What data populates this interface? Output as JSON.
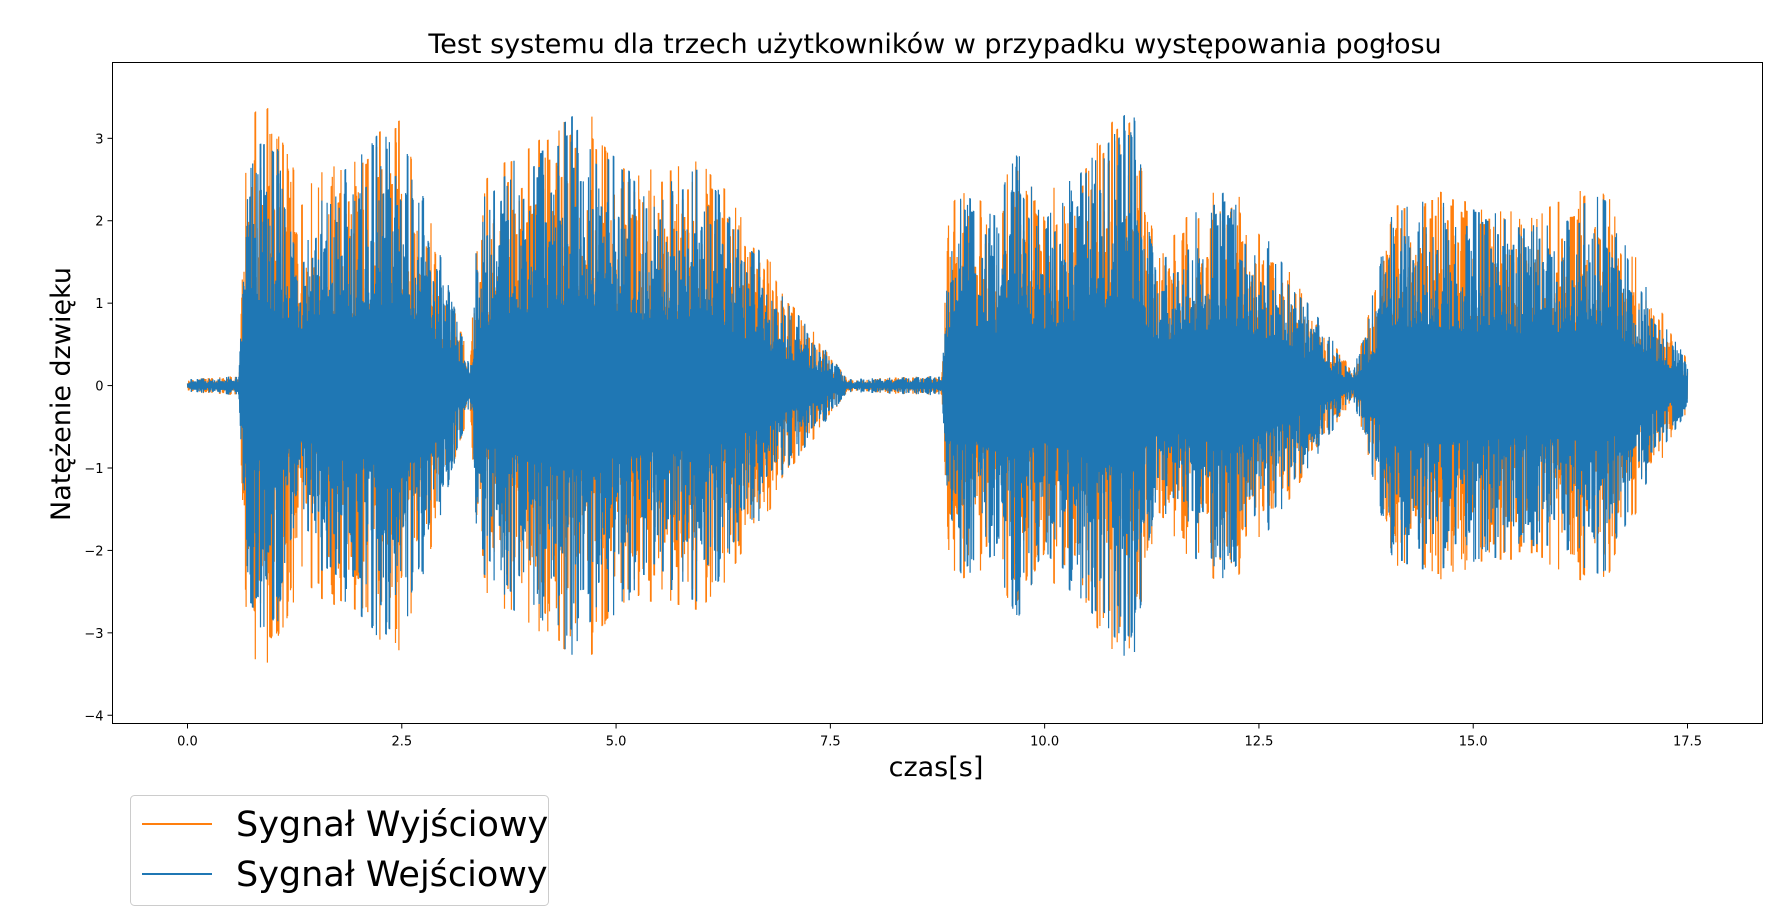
{
  "chart_data": {
    "type": "line",
    "title": "Test systemu dla trzech użytkowników w przypadku występowania pogłosu",
    "xlabel": "czas[s]",
    "ylabel": "Natężenie dzwięku",
    "xlim": [
      -0.875,
      18.375
    ],
    "ylim": [
      -4.1,
      3.92
    ],
    "x_ticks": [
      0.0,
      2.5,
      5.0,
      7.5,
      10.0,
      12.5,
      15.0,
      17.5
    ],
    "x_tick_labels": [
      "0.0",
      "2.5",
      "5.0",
      "7.5",
      "10.0",
      "12.5",
      "15.0",
      "17.5"
    ],
    "y_ticks": [
      3,
      2,
      1,
      0,
      -1,
      -2,
      -3,
      -4
    ],
    "y_tick_labels": [
      "3",
      "2",
      "1",
      "0",
      "−1",
      "−2",
      "−3",
      "−4"
    ],
    "grid": false,
    "legend_position": "bottom-left (below plot)",
    "series": [
      {
        "name": "Sygnał Wyjściowy",
        "color": "#ff7f0e",
        "x": [
          0.0,
          0.6,
          0.7,
          0.98,
          1.28,
          2.48,
          3.3,
          3.4,
          4.0,
          4.6,
          5.3,
          6.0,
          6.7,
          7.0,
          7.7,
          8.8,
          8.88,
          9.05,
          9.15,
          9.45,
          9.65,
          10.0,
          11.0,
          11.3,
          12.2,
          12.3,
          13.6,
          14.1,
          14.6,
          15.0,
          15.7,
          16.4,
          16.45,
          17.0,
          17.5
        ],
        "y": [
          0.08,
          0.12,
          3.25,
          -3.7,
          2.45,
          3.3,
          0.3,
          2.5,
          3.0,
          -3.4,
          2.6,
          -2.75,
          1.8,
          -1.1,
          0.08,
          0.12,
          2.2,
          -2.55,
          2.5,
          -2.2,
          3.0,
          2.3,
          3.55,
          -1.8,
          2.55,
          -2.35,
          0.15,
          2.35,
          2.4,
          -2.2,
          2.1,
          2.45,
          -2.65,
          -1.3,
          0.3
        ]
      },
      {
        "name": "Sygnał Wejściowy",
        "color": "#1f77b4",
        "x": [
          0.0,
          0.6,
          0.7,
          0.98,
          1.28,
          2.48,
          3.3,
          3.4,
          4.0,
          4.6,
          5.3,
          6.0,
          6.7,
          7.0,
          7.7,
          8.8,
          8.88,
          9.05,
          9.15,
          9.45,
          9.65,
          10.0,
          11.0,
          11.3,
          12.2,
          12.3,
          13.6,
          14.1,
          14.6,
          15.0,
          15.7,
          16.4,
          16.45,
          17.0,
          17.5
        ],
        "y": [
          0.08,
          0.12,
          2.9,
          -3.1,
          2.15,
          3.3,
          0.3,
          2.3,
          3.0,
          -3.35,
          2.55,
          -2.7,
          1.6,
          -1.05,
          0.08,
          0.12,
          1.9,
          -2.4,
          2.3,
          -2.1,
          2.95,
          2.1,
          3.55,
          -1.75,
          2.45,
          -2.3,
          0.15,
          2.35,
          2.3,
          -2.15,
          2.0,
          2.3,
          -2.5,
          -1.25,
          0.3
        ]
      }
    ]
  }
}
